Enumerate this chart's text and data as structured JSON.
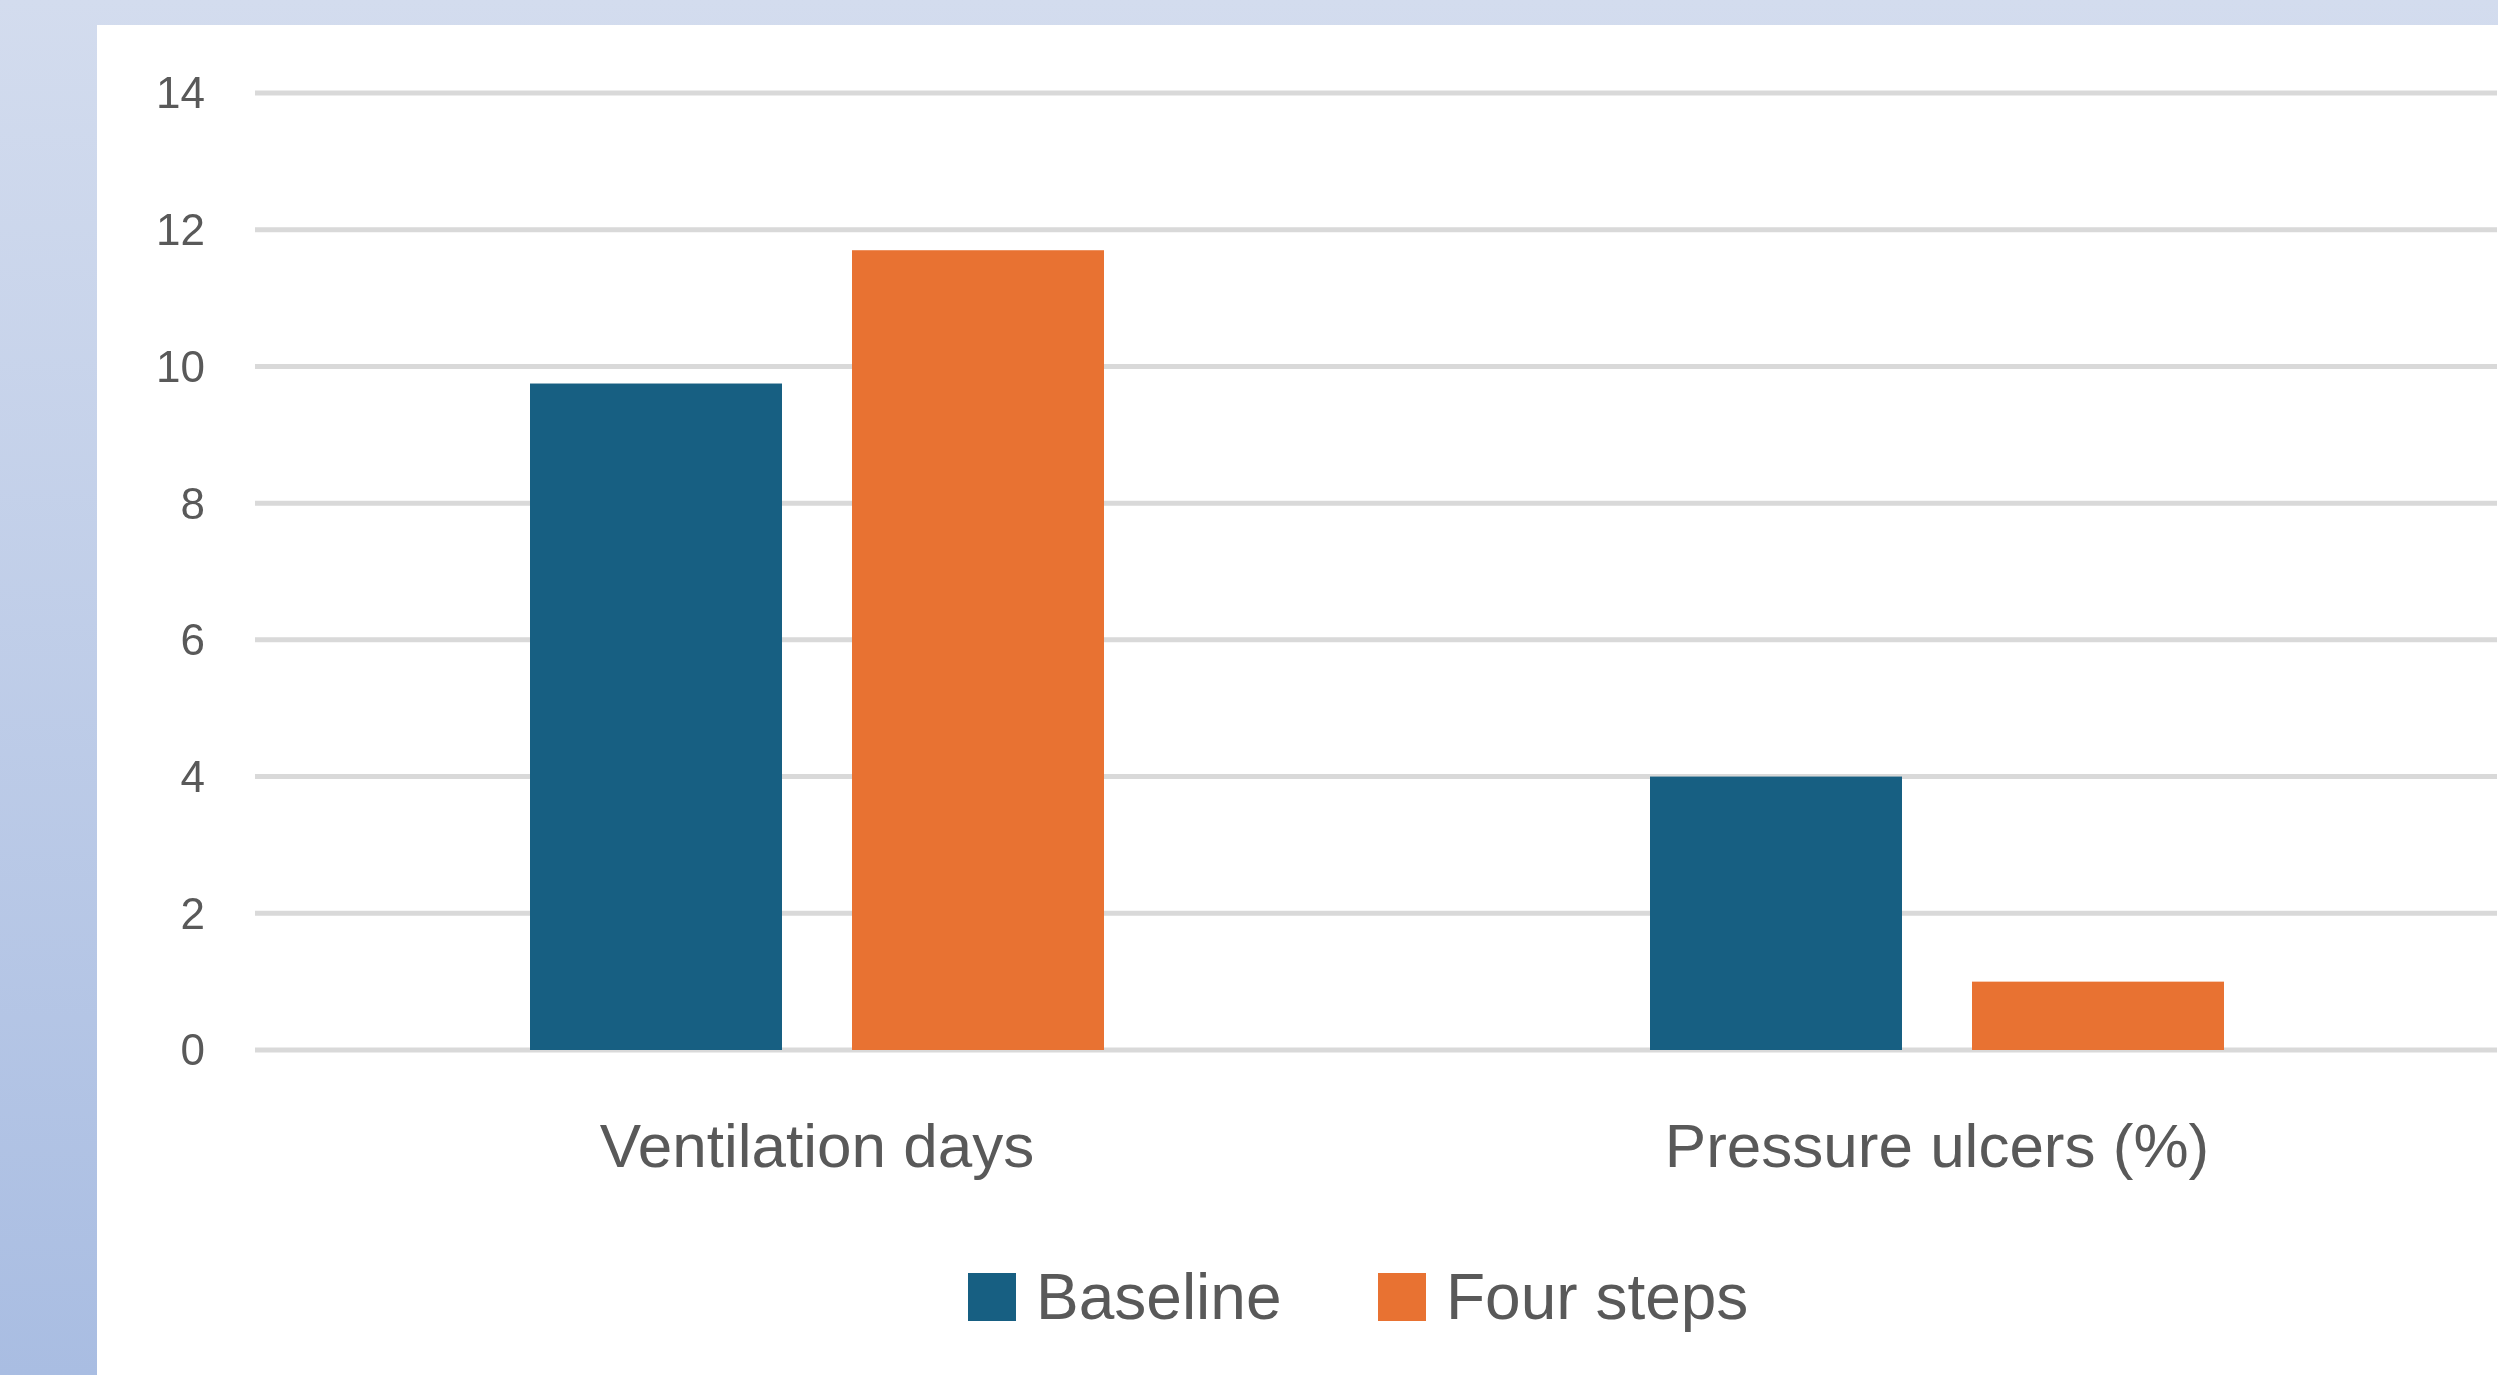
{
  "chart_data": {
    "type": "bar",
    "categories": [
      "Ventilation days",
      "Pressure ulcers (%)"
    ],
    "series": [
      {
        "name": "Baseline",
        "color": "#175f82",
        "values": [
          9.75,
          4
        ]
      },
      {
        "name": "Four steps",
        "color": "#e87232",
        "values": [
          11.7,
          1
        ]
      }
    ],
    "ylim": [
      0,
      14
    ],
    "yticks": [
      0,
      2,
      4,
      6,
      8,
      10,
      12,
      14
    ],
    "grid": "y",
    "legend": "bottom"
  }
}
